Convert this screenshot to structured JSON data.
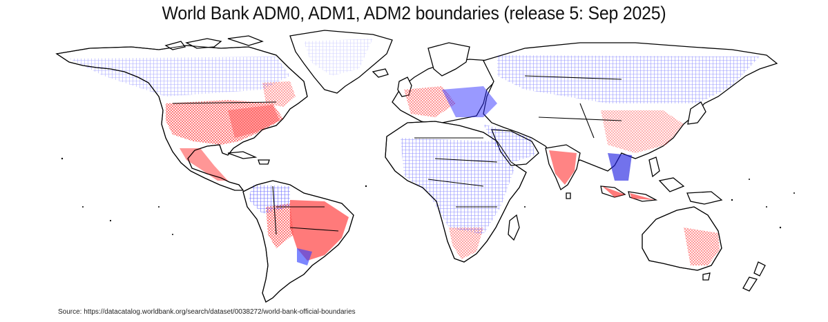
{
  "title": "World Bank ADM0, ADM1, ADM2 boundaries (release 5: Sep 2025)",
  "source": "Source: https://datacatalog.worldbank.org/search/dataset/0038272/world-bank-official-boundaries",
  "colors": {
    "background": "#ffffff",
    "adm0": "#000000",
    "adm1": "#2020ff",
    "adm2": "#ff2020"
  }
}
